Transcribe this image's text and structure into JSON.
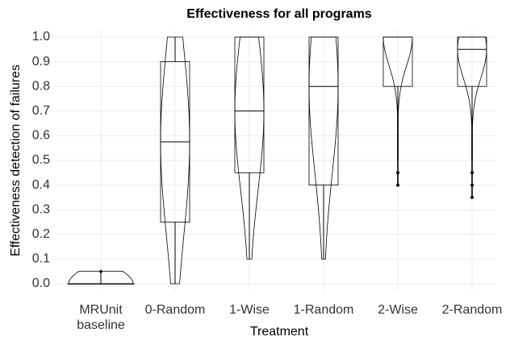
{
  "chart_data": {
    "type": "violin",
    "title": "Effectiveness for all programs",
    "x_label": "Treatment",
    "y_label": "Effectiveness detection of failures",
    "categories": [
      "MRUnit baseline",
      "0-Random",
      "1-Wise",
      "1-Random",
      "2-Wise",
      "2-Random"
    ],
    "boxes": [
      {
        "min": 0,
        "q1": 0,
        "median": 0,
        "q3": 0,
        "max": 0.05,
        "outliers": []
      },
      {
        "min": 0,
        "q1": 0.25,
        "median": 0.575,
        "q3": 0.9,
        "max": 1.0,
        "outliers": []
      },
      {
        "min": 0.1,
        "q1": 0.45,
        "median": 0.7,
        "q3": 1.0,
        "max": 1.0,
        "outliers": []
      },
      {
        "min": 0.1,
        "q1": 0.4,
        "median": 0.8,
        "q3": 1.0,
        "max": 1.0,
        "outliers": []
      },
      {
        "min": 0.5,
        "q1": 0.8,
        "median": 1.0,
        "q3": 1.0,
        "max": 1.0,
        "outliers": [
          0.4,
          0.45
        ]
      },
      {
        "min": 0.5,
        "q1": 0.8,
        "median": 0.95,
        "q3": 1.0,
        "max": 1.0,
        "outliers": [
          0.35,
          0.4,
          0.45
        ]
      }
    ],
    "color": "#000000",
    "ylim": [
      -0.03,
      1.03
    ],
    "yticks": [
      {
        "value": 0,
        "label": "0.0"
      },
      0.1,
      0.2,
      0.3,
      0.4,
      0.5,
      0.6,
      0.7,
      0.8,
      0.9,
      {
        "value": 1,
        "label": "1.0"
      }
    ],
    "grid": true
  }
}
